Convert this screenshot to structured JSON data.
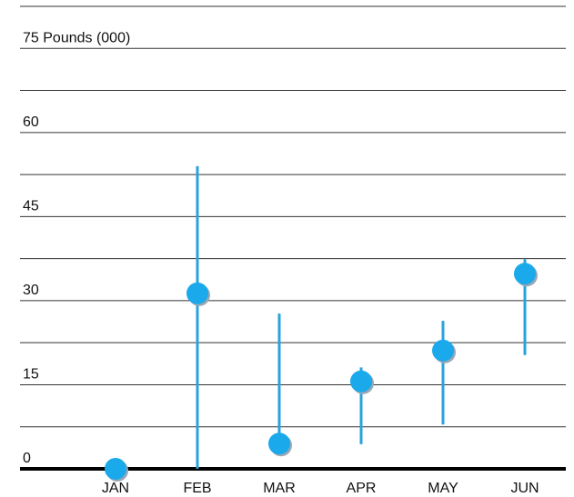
{
  "chart_data": {
    "type": "range-dot",
    "categories": [
      "JAN",
      "FEB",
      "MAR",
      "APR",
      "MAY",
      "JUN"
    ],
    "values": [
      0,
      31.3,
      4.5,
      15.6,
      21.1,
      34.8
    ],
    "high": [
      null,
      54,
      27.7,
      18.1,
      26.4,
      37.4
    ],
    "low": [
      null,
      0,
      4.5,
      4.4,
      7.9,
      20.3
    ],
    "color": "#1aa9ea",
    "line_color": "#29a3dc",
    "ylim": [
      0,
      82.5
    ],
    "yticks": [
      0,
      15,
      30,
      45,
      60,
      {
        "value": 75,
        "label": "75 Pounds (000)"
      }
    ],
    "minor_yticks": [
      7.5,
      22.5,
      37.5,
      52.5,
      67.5,
      82.5
    ],
    "grid": true
  }
}
